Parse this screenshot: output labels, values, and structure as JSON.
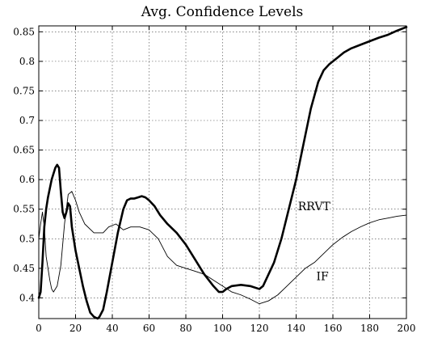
{
  "chart_data": {
    "type": "line",
    "title": "Avg. Confidence Levels",
    "xlabel": "",
    "ylabel": "",
    "xlim": [
      0,
      200
    ],
    "ylim": [
      0.365,
      0.86
    ],
    "xticks": [
      0,
      20,
      40,
      60,
      80,
      100,
      120,
      140,
      160,
      180,
      200
    ],
    "yticks": [
      0.4,
      0.45,
      0.5,
      0.55,
      0.6,
      0.65,
      0.7,
      0.75,
      0.8,
      0.85
    ],
    "xtick_labels": [
      "0",
      "20",
      "40",
      "60",
      "80",
      "100",
      "120",
      "140",
      "160",
      "180",
      "200"
    ],
    "ytick_labels": [
      "0.4",
      "0.45",
      "0.5",
      "0.55",
      "0.6",
      "0.65",
      "0.7",
      "0.75",
      "0.8",
      "0.85"
    ],
    "grid": true,
    "series": [
      {
        "name": "RRVT",
        "style": "thick",
        "color": "#000000",
        "label_at": [
          141,
          0.548
        ],
        "x": [
          0,
          1,
          2,
          3,
          4,
          5,
          7,
          9,
          10,
          11,
          12,
          13,
          14,
          15,
          16,
          17,
          18,
          20,
          22,
          24,
          26,
          28,
          30,
          32,
          33,
          35,
          37,
          40,
          43,
          46,
          48,
          50,
          52,
          54,
          56,
          58,
          60,
          63,
          66,
          70,
          75,
          80,
          85,
          90,
          95,
          98,
          100,
          102,
          105,
          110,
          115,
          120,
          122,
          125,
          128,
          132,
          136,
          140,
          144,
          148,
          152,
          155,
          158,
          162,
          166,
          170,
          175,
          180,
          185,
          190,
          195,
          200
        ],
        "y": [
          0.4,
          0.41,
          0.46,
          0.52,
          0.55,
          0.57,
          0.6,
          0.62,
          0.625,
          0.62,
          0.58,
          0.545,
          0.535,
          0.545,
          0.56,
          0.555,
          0.52,
          0.48,
          0.45,
          0.42,
          0.395,
          0.375,
          0.368,
          0.365,
          0.368,
          0.38,
          0.41,
          0.46,
          0.51,
          0.55,
          0.565,
          0.568,
          0.568,
          0.57,
          0.572,
          0.57,
          0.565,
          0.555,
          0.54,
          0.525,
          0.51,
          0.49,
          0.465,
          0.44,
          0.42,
          0.41,
          0.41,
          0.415,
          0.42,
          0.422,
          0.42,
          0.415,
          0.42,
          0.44,
          0.46,
          0.5,
          0.55,
          0.6,
          0.66,
          0.72,
          0.765,
          0.785,
          0.795,
          0.805,
          0.815,
          0.822,
          0.828,
          0.834,
          0.84,
          0.845,
          0.852,
          0.858
        ]
      },
      {
        "name": "IF",
        "style": "thin",
        "color": "#000000",
        "label_at": [
          151,
          0.43
        ],
        "x": [
          0,
          1,
          2,
          3,
          4,
          5,
          6,
          7,
          8,
          10,
          12,
          14,
          16,
          18,
          20,
          22,
          25,
          30,
          35,
          38,
          42,
          46,
          50,
          55,
          60,
          65,
          70,
          75,
          80,
          85,
          90,
          95,
          100,
          105,
          110,
          115,
          120,
          125,
          130,
          135,
          140,
          145,
          150,
          155,
          160,
          165,
          170,
          175,
          180,
          185,
          190,
          195,
          200
        ],
        "y": [
          0.5,
          0.525,
          0.545,
          0.52,
          0.47,
          0.45,
          0.43,
          0.415,
          0.41,
          0.42,
          0.455,
          0.525,
          0.575,
          0.58,
          0.565,
          0.545,
          0.525,
          0.51,
          0.51,
          0.52,
          0.525,
          0.515,
          0.52,
          0.52,
          0.515,
          0.5,
          0.47,
          0.455,
          0.45,
          0.445,
          0.44,
          0.43,
          0.42,
          0.41,
          0.405,
          0.398,
          0.39,
          0.395,
          0.405,
          0.42,
          0.435,
          0.45,
          0.46,
          0.475,
          0.49,
          0.502,
          0.512,
          0.52,
          0.527,
          0.532,
          0.535,
          0.538,
          0.54
        ]
      }
    ]
  }
}
